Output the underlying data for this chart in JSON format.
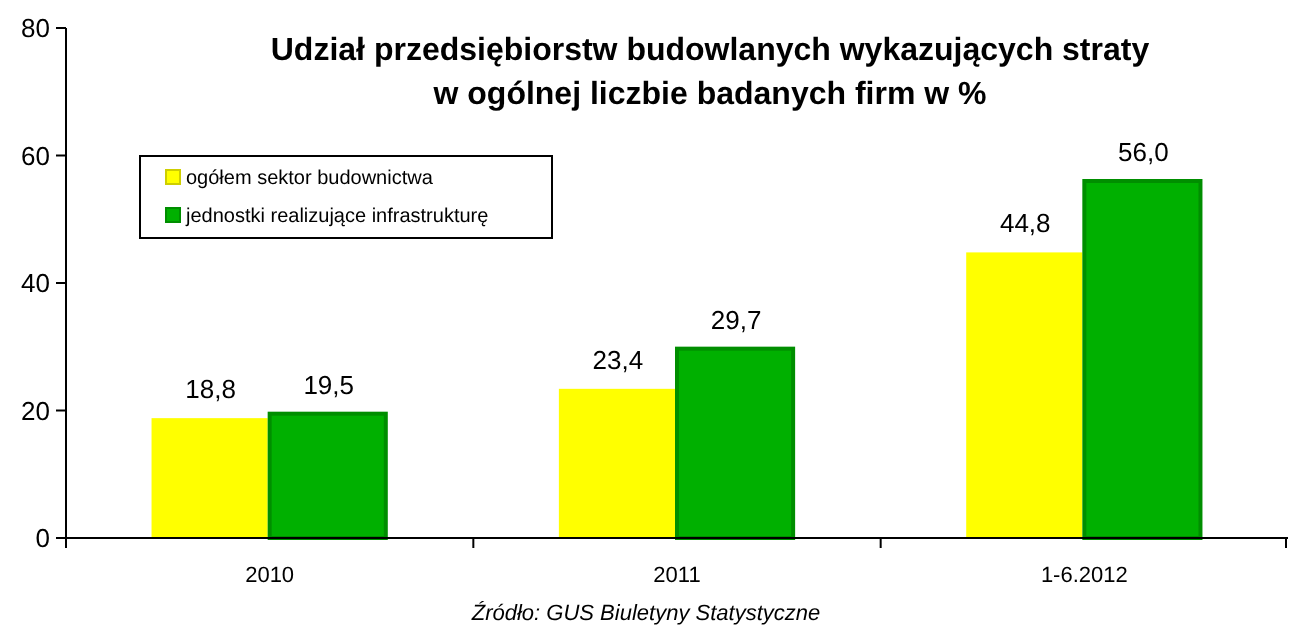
{
  "chart_data": {
    "type": "bar",
    "title": "Udział przedsiębiorstw budowlanych wykazujących straty\nw ogólnej liczbie badanych firm w %",
    "categories": [
      "2010",
      "2011",
      "1-6.2012"
    ],
    "series": [
      {
        "name": "ogółem sektor budownictwa",
        "color": "#ffff00",
        "values": [
          18.8,
          23.4,
          44.8
        ],
        "value_labels": [
          "18,8",
          "23,4",
          "44,8"
        ]
      },
      {
        "name": "jednostki realizujące infrastrukturę",
        "color": "#00b000",
        "values": [
          19.5,
          29.7,
          56.0
        ],
        "value_labels": [
          "19,5",
          "29,7",
          "56,0"
        ]
      }
    ],
    "ylim": [
      0,
      80
    ],
    "yticks": [
      0,
      20,
      40,
      60,
      80
    ],
    "grid": false,
    "legend": "top left",
    "annotations": [
      "Źródło: GUS Biuletyny Statystyczne"
    ]
  }
}
